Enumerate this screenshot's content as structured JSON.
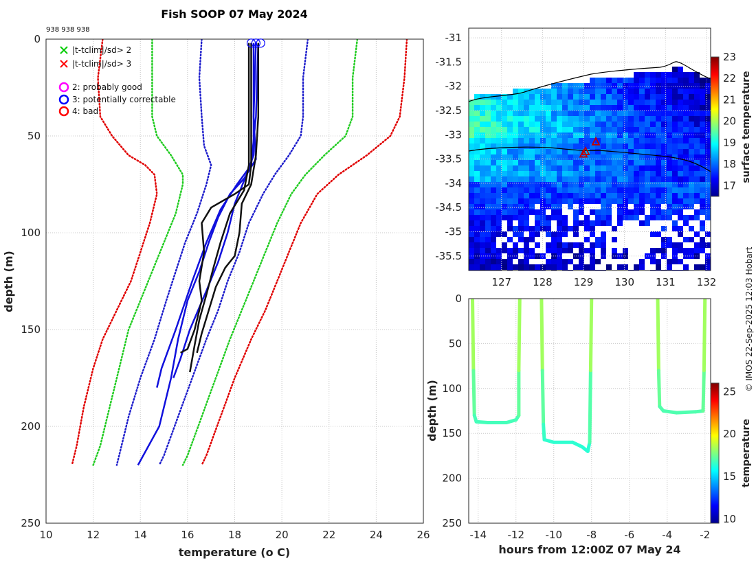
{
  "chart_data": [
    {
      "type": "line",
      "title": "Fish SOOP 07 May 2024",
      "subtitle": "938 938 938",
      "xlabel": "temperature (o C)",
      "ylabel": "depth (m)",
      "xlim": [
        10,
        26
      ],
      "ylim": [
        0,
        250
      ],
      "xticks": [
        "10",
        "12",
        "14",
        "16",
        "18",
        "20",
        "22",
        "24",
        "26"
      ],
      "yticks": [
        "0",
        "50",
        "100",
        "150",
        "200",
        "250"
      ],
      "legend": [
        {
          "marker": "x",
          "color": "#00cc00",
          "label": "|t-tclim|/sd> 2"
        },
        {
          "marker": "x",
          "color": "#ff0000",
          "label": "|t-tclim|/sd> 3"
        },
        {
          "marker": "o",
          "color": "#ff00ff",
          "label": "2: probably good"
        },
        {
          "marker": "o",
          "color": "#0000ff",
          "label": "3: potentially correctable"
        },
        {
          "marker": "o",
          "color": "#ff0000",
          "label": "4: bad"
        }
      ],
      "series": [
        {
          "name": "clim -3sd",
          "color": "#e00000",
          "style": "dotted",
          "points": [
            [
              12.4,
              0
            ],
            [
              12.2,
              20
            ],
            [
              12.3,
              40
            ],
            [
              12.8,
              50
            ],
            [
              13.5,
              60
            ],
            [
              14.2,
              65
            ],
            [
              14.6,
              70
            ],
            [
              14.7,
              80
            ],
            [
              14.4,
              95
            ],
            [
              14.0,
              110
            ],
            [
              13.6,
              125
            ],
            [
              13.0,
              140
            ],
            [
              12.4,
              155
            ],
            [
              12.0,
              170
            ],
            [
              11.6,
              190
            ],
            [
              11.3,
              210
            ],
            [
              11.1,
              220
            ]
          ]
        },
        {
          "name": "clim -2sd",
          "color": "#22cc22",
          "style": "dotted",
          "points": [
            [
              14.5,
              0
            ],
            [
              14.5,
              20
            ],
            [
              14.5,
              40
            ],
            [
              14.7,
              50
            ],
            [
              15.3,
              60
            ],
            [
              15.8,
              70
            ],
            [
              15.8,
              75
            ],
            [
              15.5,
              90
            ],
            [
              15.0,
              105
            ],
            [
              14.5,
              120
            ],
            [
              14.0,
              135
            ],
            [
              13.5,
              150
            ],
            [
              13.1,
              170
            ],
            [
              12.7,
              190
            ],
            [
              12.3,
              210
            ],
            [
              12.0,
              220
            ]
          ]
        },
        {
          "name": "clim -1sd",
          "color": "#2020cc",
          "style": "dotted",
          "points": [
            [
              16.6,
              0
            ],
            [
              16.5,
              20
            ],
            [
              16.6,
              40
            ],
            [
              16.7,
              55
            ],
            [
              17.0,
              65
            ],
            [
              16.8,
              75
            ],
            [
              16.4,
              90
            ],
            [
              15.9,
              105
            ],
            [
              15.5,
              120
            ],
            [
              15.1,
              135
            ],
            [
              14.6,
              155
            ],
            [
              14.0,
              175
            ],
            [
              13.5,
              195
            ],
            [
              13.1,
              215
            ],
            [
              13.0,
              220
            ]
          ]
        },
        {
          "name": "clim +1sd",
          "color": "#2020cc",
          "style": "dotted",
          "points": [
            [
              21.1,
              0
            ],
            [
              20.9,
              20
            ],
            [
              20.9,
              40
            ],
            [
              20.8,
              50
            ],
            [
              20.3,
              60
            ],
            [
              19.7,
              70
            ],
            [
              19.2,
              80
            ],
            [
              18.6,
              95
            ],
            [
              18.2,
              110
            ],
            [
              17.7,
              125
            ],
            [
              17.3,
              140
            ],
            [
              16.8,
              155
            ],
            [
              16.2,
              175
            ],
            [
              15.6,
              195
            ],
            [
              15.0,
              215
            ],
            [
              14.8,
              220
            ]
          ]
        },
        {
          "name": "clim +2sd",
          "color": "#22cc22",
          "style": "dotted",
          "points": [
            [
              23.2,
              0
            ],
            [
              23.0,
              20
            ],
            [
              23.0,
              40
            ],
            [
              22.7,
              50
            ],
            [
              21.8,
              60
            ],
            [
              21.0,
              70
            ],
            [
              20.4,
              80
            ],
            [
              19.8,
              95
            ],
            [
              19.3,
              110
            ],
            [
              18.8,
              125
            ],
            [
              18.3,
              140
            ],
            [
              17.8,
              155
            ],
            [
              17.2,
              175
            ],
            [
              16.6,
              195
            ],
            [
              16.0,
              215
            ],
            [
              15.8,
              220
            ]
          ]
        },
        {
          "name": "clim +3sd",
          "color": "#e00000",
          "style": "dotted",
          "points": [
            [
              25.3,
              0
            ],
            [
              25.2,
              20
            ],
            [
              25.0,
              40
            ],
            [
              24.6,
              50
            ],
            [
              23.6,
              60
            ],
            [
              22.4,
              70
            ],
            [
              21.5,
              80
            ],
            [
              20.8,
              95
            ],
            [
              20.3,
              110
            ],
            [
              19.8,
              125
            ],
            [
              19.3,
              140
            ],
            [
              18.7,
              155
            ],
            [
              18.0,
              175
            ],
            [
              17.4,
              195
            ],
            [
              16.8,
              215
            ],
            [
              16.6,
              220
            ]
          ]
        },
        {
          "name": "profile 1",
          "color": "#1010dd",
          "style": "solid",
          "points": [
            [
              18.9,
              2
            ],
            [
              18.8,
              40
            ],
            [
              18.9,
              62
            ],
            [
              18.4,
              72
            ],
            [
              17.8,
              80
            ],
            [
              17.3,
              92
            ],
            [
              16.9,
              105
            ],
            [
              16.5,
              120
            ],
            [
              16.0,
              135
            ],
            [
              15.6,
              155
            ],
            [
              15.3,
              175
            ],
            [
              14.8,
              200
            ],
            [
              13.9,
              220
            ]
          ]
        },
        {
          "name": "profile 2",
          "color": "#1010dd",
          "style": "solid",
          "points": [
            [
              19.0,
              2
            ],
            [
              18.9,
              40
            ],
            [
              18.7,
              65
            ],
            [
              18.1,
              75
            ],
            [
              17.4,
              88
            ],
            [
              16.8,
              105
            ],
            [
              16.2,
              125
            ],
            [
              15.5,
              150
            ],
            [
              14.9,
              170
            ],
            [
              14.7,
              180
            ]
          ]
        },
        {
          "name": "profile 3",
          "color": "#1010dd",
          "style": "solid",
          "points": [
            [
              18.8,
              2
            ],
            [
              18.8,
              40
            ],
            [
              18.8,
              60
            ],
            [
              18.5,
              70
            ],
            [
              18.0,
              85
            ],
            [
              17.7,
              100
            ],
            [
              17.3,
              115
            ],
            [
              16.8,
              130
            ],
            [
              16.1,
              150
            ],
            [
              15.7,
              165
            ],
            [
              15.4,
              175
            ]
          ]
        },
        {
          "name": "profile 4",
          "color": "#111111",
          "style": "solid",
          "points": [
            [
              18.7,
              2
            ],
            [
              18.7,
              40
            ],
            [
              18.7,
              65
            ],
            [
              18.6,
              75
            ],
            [
              18.0,
              80
            ],
            [
              17.0,
              87
            ],
            [
              16.6,
              95
            ],
            [
              16.7,
              110
            ],
            [
              16.5,
              125
            ],
            [
              16.6,
              135
            ],
            [
              16.3,
              150
            ],
            [
              16.0,
              160
            ],
            [
              15.7,
              162
            ]
          ]
        },
        {
          "name": "profile 5",
          "color": "#111111",
          "style": "solid",
          "points": [
            [
              18.6,
              2
            ],
            [
              18.6,
              40
            ],
            [
              18.6,
              65
            ],
            [
              18.4,
              78
            ],
            [
              17.8,
              90
            ],
            [
              17.4,
              105
            ],
            [
              17.1,
              118
            ],
            [
              16.8,
              132
            ],
            [
              16.5,
              145
            ],
            [
              16.3,
              158
            ],
            [
              16.1,
              172
            ]
          ]
        },
        {
          "name": "profile 6",
          "color": "#111111",
          "style": "solid",
          "points": [
            [
              19.0,
              2
            ],
            [
              19.0,
              40
            ],
            [
              18.9,
              60
            ],
            [
              18.7,
              75
            ],
            [
              18.3,
              85
            ],
            [
              18.2,
              100
            ],
            [
              18.0,
              112
            ],
            [
              17.6,
              118
            ],
            [
              17.2,
              128
            ],
            [
              16.9,
              140
            ],
            [
              16.6,
              152
            ],
            [
              16.4,
              162
            ]
          ]
        }
      ],
      "flag_markers": [
        {
          "x": 18.7,
          "y": 1,
          "color": "#0000ff"
        },
        {
          "x": 18.9,
          "y": 1,
          "color": "#0000ff"
        },
        {
          "x": 19.1,
          "y": 1,
          "color": "#0000ff"
        }
      ]
    },
    {
      "type": "heatmap",
      "title": "",
      "colorbar_label": "surface temperature",
      "colorbar_ticks": [
        "17",
        "18",
        "19",
        "20",
        "21",
        "22",
        "23"
      ],
      "clim": [
        16.5,
        23
      ],
      "xlim": [
        126.2,
        132.1
      ],
      "ylim": [
        -35.8,
        -30.8
      ],
      "xticks": [
        "127",
        "128",
        "129",
        "130",
        "131",
        "132"
      ],
      "yticks": [
        "-31",
        "-31.5",
        "-32",
        "-32.5",
        "-33",
        "-33.5",
        "-34",
        "-34.5",
        "-35",
        "-35.5"
      ],
      "drop_markers": [
        {
          "lon": 129.3,
          "lat": -33.15
        },
        {
          "lon": 129.05,
          "lat": -33.35
        },
        {
          "lon": 129.0,
          "lat": -33.4
        }
      ]
    },
    {
      "type": "scatter",
      "xlabel": "hours from 12:00Z 07 May 24",
      "ylabel": "depth (m)",
      "colorbar_label": "temperature",
      "colorbar_ticks": [
        "10",
        "15",
        "20",
        "25"
      ],
      "clim": [
        9.5,
        26
      ],
      "xlim": [
        -14.5,
        -1.7
      ],
      "ylim": [
        0,
        250
      ],
      "xticks": [
        "-14",
        "-12",
        "-10",
        "-8",
        "-6",
        "-4",
        "-2"
      ],
      "yticks": [
        "0",
        "50",
        "100",
        "150",
        "200",
        "250"
      ],
      "casts": [
        {
          "points": [
            [
              -14.3,
              0
            ],
            [
              -14.25,
              80
            ],
            [
              -14.2,
              130
            ],
            [
              -14.1,
              137
            ],
            [
              -13.5,
              138
            ],
            [
              -12.5,
              138
            ],
            [
              -12.0,
              135
            ],
            [
              -11.85,
              130
            ],
            [
              -11.85,
              80
            ],
            [
              -11.8,
              0
            ]
          ]
        },
        {
          "points": [
            [
              -10.65,
              0
            ],
            [
              -10.6,
              80
            ],
            [
              -10.55,
              140
            ],
            [
              -10.5,
              157
            ],
            [
              -10.0,
              160
            ],
            [
              -9.0,
              160
            ],
            [
              -8.5,
              165
            ],
            [
              -8.2,
              170
            ],
            [
              -8.1,
              160
            ],
            [
              -8.05,
              80
            ],
            [
              -8.0,
              0
            ]
          ]
        },
        {
          "points": [
            [
              -4.5,
              0
            ],
            [
              -4.45,
              80
            ],
            [
              -4.4,
              120
            ],
            [
              -4.2,
              125
            ],
            [
              -3.5,
              127
            ],
            [
              -2.5,
              126
            ],
            [
              -2.1,
              125
            ],
            [
              -2.05,
              80
            ],
            [
              -2.0,
              0
            ]
          ]
        }
      ]
    }
  ],
  "watermark": "© IMOS 22-Sep-2025 12:03 Hobart"
}
